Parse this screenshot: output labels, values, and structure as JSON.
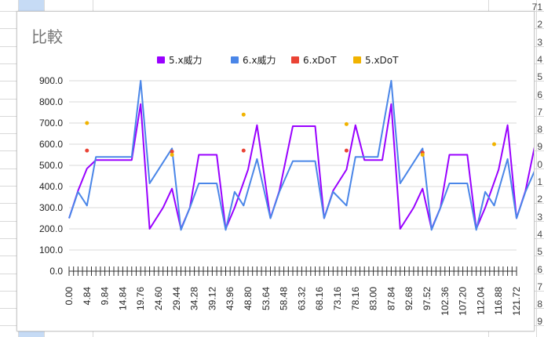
{
  "sheet": {
    "row_numbers": [
      "71",
      "2",
      "3",
      "4",
      "5",
      "6",
      "7",
      "8",
      "9",
      "0",
      "1",
      "2",
      "3",
      "4",
      "5",
      "6",
      "7",
      "8",
      "9"
    ]
  },
  "chart_data": {
    "type": "line",
    "title": "比較",
    "legend": {
      "position": "top"
    },
    "ylim": [
      0,
      900
    ],
    "yticks": [
      "0.0",
      "100.0",
      "200.0",
      "300.0",
      "400.0",
      "500.0",
      "600.0",
      "700.0",
      "800.0",
      "900.0"
    ],
    "xtick_labels": [
      "0.00",
      "4.84",
      "9.84",
      "14.84",
      "19.76",
      "24.60",
      "29.44",
      "34.28",
      "39.12",
      "43.96",
      "48.80",
      "53.64",
      "58.48",
      "63.32",
      "68.16",
      "73.16",
      "78.16",
      "83.00",
      "87.84",
      "92.68",
      "97.52",
      "102.36",
      "107.20",
      "112.04",
      "116.88",
      "121.72"
    ],
    "x": [
      0.0,
      1.22,
      2.44,
      3.66,
      4.84,
      6.06,
      7.28,
      8.5,
      9.72,
      10.94,
      12.16,
      13.38,
      14.6,
      15.82,
      17.04,
      18.26,
      19.48,
      20.7,
      21.92,
      23.14,
      24.36,
      25.58,
      26.8,
      28.02,
      29.24,
      30.46,
      31.68,
      32.9,
      34.12,
      35.34,
      36.56,
      37.78,
      39.0,
      40.22,
      41.44,
      42.66,
      43.88,
      45.1,
      46.32,
      47.54,
      48.76,
      49.98,
      51.2,
      52.42,
      53.64,
      54.86,
      56.08,
      57.3,
      58.52,
      59.74,
      60.96,
      62.18,
      63.4,
      64.62,
      65.84,
      67.06,
      68.28,
      69.5,
      70.72,
      71.94,
      73.16,
      74.38,
      75.6,
      76.82,
      78.04,
      79.26,
      80.48,
      81.7,
      82.92,
      84.14,
      85.36,
      86.58,
      87.8,
      89.02,
      90.24,
      91.46,
      92.68,
      93.9,
      95.12,
      96.34,
      97.56,
      98.78,
      100.0,
      101.22,
      102.44,
      103.66,
      104.88,
      106.1,
      107.32,
      108.54,
      109.76,
      110.98,
      112.2,
      113.42,
      114.64,
      115.86,
      117.08,
      118.3,
      119.52,
      120.74,
      121.96
    ],
    "series": [
      {
        "name": "5.x威力",
        "color": "#9900ff",
        "points": [
          [
            0,
            250
          ],
          [
            2,
            380
          ],
          [
            4,
            485
          ],
          [
            6,
            525
          ],
          [
            10,
            525
          ],
          [
            14,
            525
          ],
          [
            16,
            790
          ],
          [
            18,
            200
          ],
          [
            21,
            300
          ],
          [
            23,
            390
          ],
          [
            25,
            200
          ],
          [
            27,
            300
          ],
          [
            29,
            550
          ],
          [
            33,
            550
          ],
          [
            35,
            200
          ],
          [
            37,
            300
          ],
          [
            40,
            480
          ],
          [
            42,
            690
          ],
          [
            45,
            250
          ],
          [
            47,
            380
          ],
          [
            50,
            685
          ],
          [
            55,
            685
          ],
          [
            57,
            250
          ],
          [
            59,
            380
          ],
          [
            62,
            480
          ],
          [
            64,
            690
          ],
          [
            66,
            525
          ],
          [
            70,
            525
          ],
          [
            72,
            790
          ],
          [
            74,
            200
          ],
          [
            77,
            300
          ],
          [
            79,
            390
          ],
          [
            81,
            200
          ],
          [
            83,
            300
          ],
          [
            85,
            550
          ],
          [
            89,
            550
          ],
          [
            91,
            200
          ],
          [
            93,
            300
          ],
          [
            96,
            480
          ],
          [
            98,
            690
          ],
          [
            100,
            250
          ],
          [
            102,
            380
          ],
          [
            105,
            685
          ],
          [
            109,
            685
          ],
          [
            111,
            250
          ]
        ]
      },
      {
        "name": "6.x威力",
        "color": "#4a86e8",
        "points": [
          [
            0,
            250
          ],
          [
            2,
            375
          ],
          [
            4,
            310
          ],
          [
            6,
            540
          ],
          [
            10,
            540
          ],
          [
            14,
            540
          ],
          [
            16,
            900
          ],
          [
            18,
            415
          ],
          [
            23,
            580
          ],
          [
            25,
            195
          ],
          [
            27,
            300
          ],
          [
            29,
            415
          ],
          [
            33,
            415
          ],
          [
            35,
            195
          ],
          [
            37,
            375
          ],
          [
            39,
            310
          ],
          [
            42,
            530
          ],
          [
            45,
            250
          ],
          [
            47,
            375
          ],
          [
            50,
            520
          ],
          [
            55,
            520
          ],
          [
            57,
            250
          ],
          [
            59,
            375
          ],
          [
            62,
            310
          ],
          [
            64,
            540
          ],
          [
            69,
            540
          ],
          [
            72,
            900
          ],
          [
            74,
            415
          ],
          [
            79,
            580
          ],
          [
            81,
            195
          ],
          [
            83,
            300
          ],
          [
            85,
            415
          ],
          [
            89,
            415
          ],
          [
            91,
            195
          ],
          [
            93,
            375
          ],
          [
            95,
            310
          ],
          [
            98,
            530
          ],
          [
            100,
            250
          ],
          [
            102,
            375
          ],
          [
            105,
            520
          ],
          [
            109,
            520
          ],
          [
            111,
            250
          ]
        ]
      },
      {
        "name": "6.xDoT",
        "color": "#ea4335",
        "points": [
          [
            4,
            570
          ],
          [
            23,
            565
          ],
          [
            39,
            570
          ],
          [
            62,
            570
          ],
          [
            79,
            560
          ]
        ]
      },
      {
        "name": "5.xDoT",
        "color": "#f1b300",
        "points": [
          [
            4,
            700
          ],
          [
            23,
            550
          ],
          [
            39,
            740
          ],
          [
            62,
            695
          ],
          [
            79,
            550
          ],
          [
            95,
            600
          ]
        ]
      }
    ]
  }
}
